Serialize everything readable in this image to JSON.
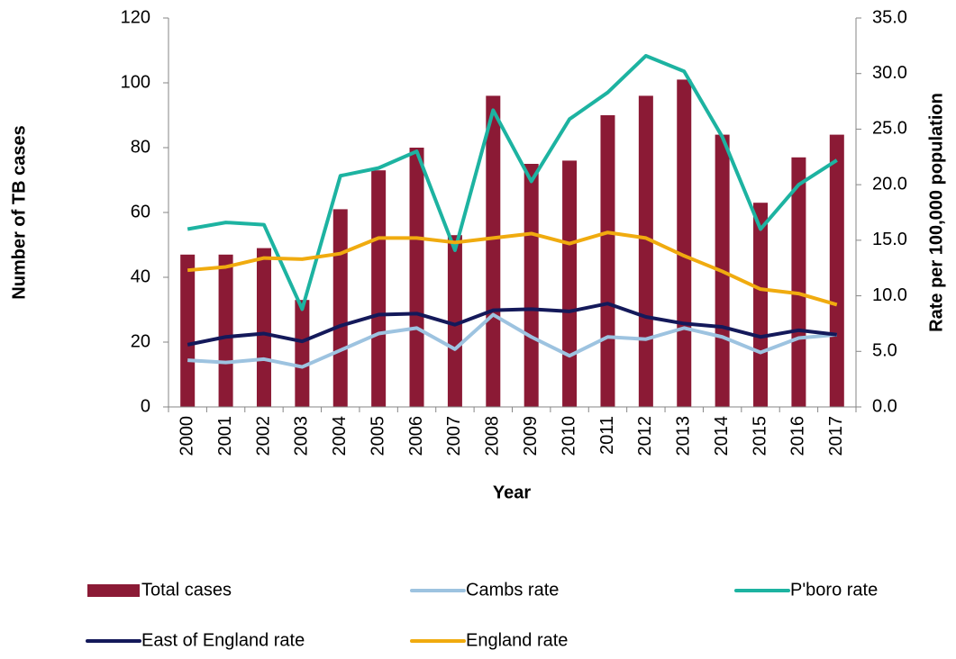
{
  "chart_data": {
    "type": "bar-line",
    "x_label": "Year",
    "y_label": "Number of TB cases",
    "y2_label": "Rate per 100,000 population",
    "categories": [
      "2000",
      "2001",
      "2002",
      "2003",
      "2004",
      "2005",
      "2006",
      "2007",
      "2008",
      "2009",
      "2010",
      "2011",
      "2012",
      "2013",
      "2014",
      "2015",
      "2016",
      "2017"
    ],
    "ylim": [
      0,
      120
    ],
    "yticks": [
      0,
      20,
      40,
      60,
      80,
      100,
      120
    ],
    "y2lim": [
      0,
      35
    ],
    "y2ticks": [
      {
        "value": 0,
        "label": "0.0"
      },
      {
        "value": 5,
        "label": "5.0"
      },
      {
        "value": 10,
        "label": "10.0"
      },
      {
        "value": 15,
        "label": "15.0"
      },
      {
        "value": 20,
        "label": "20.0"
      },
      {
        "value": 25,
        "label": "25.0"
      },
      {
        "value": 30,
        "label": "30.0"
      },
      {
        "value": 35,
        "label": "35.0"
      }
    ],
    "series": [
      {
        "name": "Total cases",
        "type": "bar",
        "color": "#8b1a35",
        "values": [
          47,
          47,
          49,
          33,
          61,
          73,
          80,
          53,
          96,
          75,
          76,
          90,
          96,
          101,
          84,
          63,
          77,
          84
        ]
      },
      {
        "name": "Cambs rate",
        "type": "line",
        "axis": "y2",
        "color": "#9dc3e0",
        "values": [
          4.2,
          4.0,
          4.3,
          3.6,
          5.1,
          6.6,
          7.1,
          5.2,
          8.3,
          6.3,
          4.6,
          6.3,
          6.1,
          7.1,
          6.3,
          4.9,
          6.2,
          6.5
        ]
      },
      {
        "name": "P'boro rate",
        "type": "line",
        "axis": "y2",
        "color": "#1db3a1",
        "values": [
          16.0,
          16.6,
          16.4,
          8.8,
          20.8,
          21.5,
          23.0,
          14.1,
          26.7,
          20.3,
          25.9,
          28.3,
          31.6,
          30.2,
          24.3,
          16.0,
          20.0,
          22.2
        ]
      },
      {
        "name": "East of England rate",
        "type": "line",
        "axis": "y2",
        "color": "#14195a",
        "values": [
          5.6,
          6.3,
          6.6,
          5.9,
          7.3,
          8.3,
          8.4,
          7.4,
          8.7,
          8.8,
          8.6,
          9.3,
          8.1,
          7.5,
          7.2,
          6.3,
          6.9,
          6.5
        ]
      },
      {
        "name": "England rate",
        "type": "line",
        "axis": "y2",
        "color": "#f0ab0f",
        "values": [
          12.3,
          12.6,
          13.4,
          13.3,
          13.8,
          15.2,
          15.2,
          14.8,
          15.2,
          15.6,
          14.7,
          15.7,
          15.2,
          13.6,
          12.2,
          10.6,
          10.2,
          9.2
        ]
      }
    ]
  }
}
